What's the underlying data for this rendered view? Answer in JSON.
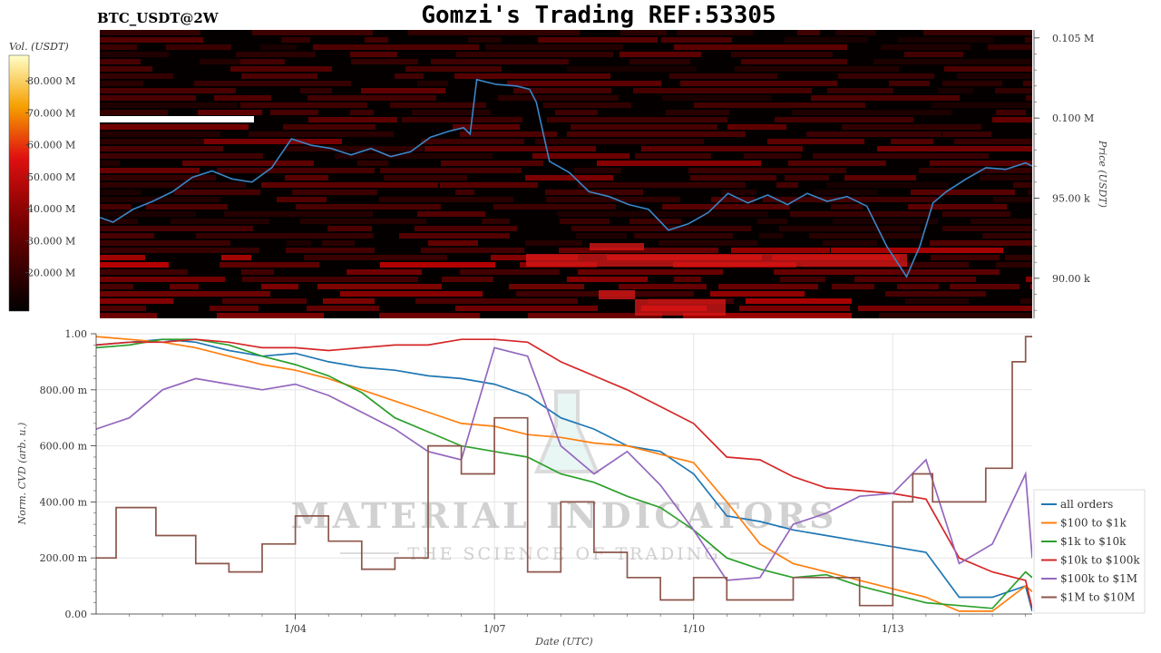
{
  "header": {
    "title": "Gomzi's Trading REF:53305",
    "pair": "BTC_USDT@2W"
  },
  "heatmap_panel": {
    "colorbar_label": "Vol. (USDT)",
    "colorbar_ticks": [
      "80.000 M",
      "70.000 M",
      "60.000 M",
      "50.000 M",
      "40.000 M",
      "30.000 M",
      "20.000 M"
    ],
    "colorbar_values": [
      80,
      70,
      60,
      50,
      40,
      30,
      20
    ],
    "colorbar_range": [
      8,
      88
    ],
    "price_ticks": [
      "0.105 M",
      "0.100 M",
      "95.00 k",
      "90.00 k"
    ],
    "price_values": [
      105000,
      100000,
      95000,
      90000
    ],
    "price_range": [
      87500,
      105500
    ],
    "ylabel": "Price (USDT)",
    "line_color": "#3a86c8"
  },
  "cvd_panel": {
    "ylabel": "Norm. CVD (arb. u.)",
    "xlabel": "Date (UTC)",
    "y_ticks": [
      "0.00",
      "200.00 m",
      "400.00 m",
      "600.00 m",
      "800.00 m",
      "1.00"
    ],
    "y_values": [
      0,
      0.2,
      0.4,
      0.6,
      0.8,
      1.0
    ],
    "x_ticks": [
      "1/04",
      "1/07",
      "1/10",
      "1/13"
    ],
    "x_tick_days": [
      3,
      6,
      9,
      12
    ],
    "watermark_main": "MATERIAL INDICATORS",
    "watermark_sub": "THE SCIENCE OF TRADING",
    "legend": [
      {
        "label": "all orders",
        "color": "#1f77b4"
      },
      {
        "label": "$100 to $1k",
        "color": "#ff7f0e"
      },
      {
        "label": "$1k to $10k",
        "color": "#2ca02c"
      },
      {
        "label": "$10k to $100k",
        "color": "#d62728"
      },
      {
        "label": "$100k to $1M",
        "color": "#9467bd"
      },
      {
        "label": "$1M to $10M",
        "color": "#8c564b"
      }
    ]
  },
  "chart_data": [
    {
      "type": "line",
      "title": "Gomzi's Trading REF:53305",
      "ylabel": "Price (USDT)",
      "ylim": [
        87500,
        105500
      ],
      "x_unit": "days from chart start",
      "x_range": [
        0,
        14.1
      ],
      "series": [
        {
          "x": [
            0,
            0.2,
            0.5,
            0.8,
            1.1,
            1.4,
            1.7,
            2.0,
            2.3,
            2.6,
            2.9,
            3.2,
            3.5,
            3.8,
            4.1,
            4.4,
            4.7,
            5.0,
            5.3,
            5.5,
            5.6,
            5.7,
            6.0,
            6.3,
            6.5,
            6.6,
            6.8,
            7.1,
            7.4,
            7.7,
            8.0,
            8.3,
            8.6,
            8.9,
            9.2,
            9.5,
            9.8,
            10.1,
            10.4,
            10.7,
            11.0,
            11.3,
            11.6,
            11.9,
            12.2,
            12.4,
            12.6,
            12.8,
            13.1,
            13.4,
            13.7,
            14.0,
            14.1
          ],
          "values": [
            93800,
            93500,
            94300,
            94800,
            95400,
            96300,
            96700,
            96200,
            96000,
            96900,
            98700,
            98300,
            98100,
            97700,
            98100,
            97600,
            97900,
            98800,
            99200,
            99400,
            99000,
            102400,
            102100,
            102000,
            101800,
            101000,
            97300,
            96600,
            95400,
            95100,
            94600,
            94300,
            93000,
            93400,
            94100,
            95300,
            94700,
            95200,
            94600,
            95300,
            94800,
            95100,
            94500,
            92000,
            90100,
            92000,
            94700,
            95400,
            96200,
            96900,
            96800,
            97200,
            97000
          ]
        }
      ]
    },
    {
      "type": "line",
      "ylabel": "Norm. CVD (arb. u.)",
      "xlabel": "Date (UTC)",
      "ylim": [
        0,
        1
      ],
      "x_unit": "days from chart start",
      "x_range": [
        0,
        14.1
      ],
      "series": [
        {
          "name": "all orders",
          "color": "#1f77b4",
          "x": [
            0,
            0.5,
            1,
            1.5,
            2,
            2.5,
            3,
            3.5,
            4,
            4.5,
            5,
            5.5,
            6,
            6.5,
            7,
            7.5,
            8,
            8.5,
            9,
            9.5,
            10,
            10.5,
            11,
            11.5,
            12,
            12.5,
            13,
            13.5,
            14,
            14.1
          ],
          "values": [
            0.96,
            0.97,
            0.98,
            0.97,
            0.94,
            0.92,
            0.93,
            0.9,
            0.88,
            0.87,
            0.85,
            0.84,
            0.82,
            0.78,
            0.7,
            0.66,
            0.6,
            0.58,
            0.5,
            0.35,
            0.33,
            0.3,
            0.28,
            0.26,
            0.24,
            0.22,
            0.06,
            0.06,
            0.1,
            0.01
          ]
        },
        {
          "name": "$100 to $1k",
          "color": "#ff7f0e",
          "x": [
            0,
            0.5,
            1,
            1.5,
            2,
            2.5,
            3,
            3.5,
            4,
            4.5,
            5,
            5.5,
            6,
            6.5,
            7,
            7.5,
            8,
            8.5,
            9,
            9.5,
            10,
            10.5,
            11,
            11.5,
            12,
            12.5,
            13,
            13.5,
            14,
            14.1
          ],
          "values": [
            0.99,
            0.98,
            0.97,
            0.95,
            0.92,
            0.89,
            0.87,
            0.84,
            0.8,
            0.76,
            0.72,
            0.68,
            0.67,
            0.64,
            0.63,
            0.61,
            0.6,
            0.57,
            0.54,
            0.4,
            0.25,
            0.18,
            0.15,
            0.12,
            0.09,
            0.06,
            0.01,
            0.01,
            0.1,
            0.08
          ]
        },
        {
          "name": "$1k to $10k",
          "color": "#2ca02c",
          "x": [
            0,
            0.5,
            1,
            1.5,
            2,
            2.5,
            3,
            3.5,
            4,
            4.5,
            5,
            5.5,
            6,
            6.5,
            7,
            7.5,
            8,
            8.5,
            9,
            9.5,
            10,
            10.5,
            11,
            11.5,
            12,
            12.5,
            13,
            13.5,
            14,
            14.1
          ],
          "values": [
            0.95,
            0.96,
            0.98,
            0.98,
            0.96,
            0.92,
            0.89,
            0.85,
            0.79,
            0.7,
            0.65,
            0.6,
            0.58,
            0.56,
            0.5,
            0.47,
            0.42,
            0.38,
            0.3,
            0.2,
            0.16,
            0.13,
            0.14,
            0.1,
            0.07,
            0.04,
            0.03,
            0.02,
            0.15,
            0.13
          ]
        },
        {
          "name": "$10k to $100k",
          "color": "#d62728",
          "x": [
            0,
            0.5,
            1,
            1.5,
            2,
            2.5,
            3,
            3.5,
            4,
            4.5,
            5,
            5.5,
            6,
            6.5,
            7,
            7.5,
            8,
            8.5,
            9,
            9.5,
            10,
            10.5,
            11,
            11.5,
            12,
            12.5,
            13,
            13.5,
            14,
            14.1
          ],
          "values": [
            0.96,
            0.97,
            0.97,
            0.98,
            0.97,
            0.95,
            0.95,
            0.94,
            0.95,
            0.96,
            0.96,
            0.98,
            0.98,
            0.97,
            0.9,
            0.85,
            0.8,
            0.74,
            0.68,
            0.56,
            0.55,
            0.49,
            0.45,
            0.44,
            0.43,
            0.41,
            0.2,
            0.15,
            0.12,
            0.02
          ]
        },
        {
          "name": "$100k to $1M",
          "color": "#9467bd",
          "x": [
            0,
            0.5,
            1,
            1.5,
            2,
            2.5,
            3,
            3.5,
            4,
            4.5,
            5,
            5.5,
            6,
            6.5,
            7,
            7.5,
            8,
            8.5,
            9,
            9.5,
            10,
            10.5,
            11,
            11.5,
            12,
            12.5,
            13,
            13.5,
            14,
            14.1
          ],
          "values": [
            0.66,
            0.7,
            0.8,
            0.84,
            0.82,
            0.8,
            0.82,
            0.78,
            0.72,
            0.66,
            0.58,
            0.55,
            0.95,
            0.92,
            0.6,
            0.5,
            0.58,
            0.46,
            0.3,
            0.12,
            0.13,
            0.32,
            0.36,
            0.42,
            0.43,
            0.55,
            0.18,
            0.25,
            0.5,
            0.2
          ]
        },
        {
          "name": "$1M to $10M",
          "color": "#8c564b",
          "x": [
            0,
            0.3,
            0.6,
            0.9,
            1.2,
            1.5,
            2,
            2.5,
            3,
            3.5,
            4,
            4.5,
            5,
            5.5,
            6,
            6.5,
            7,
            7.5,
            8,
            8.5,
            9,
            9.5,
            10,
            10.5,
            11,
            11.5,
            12,
            12.3,
            12.6,
            13,
            13.4,
            13.8,
            14,
            14.1
          ],
          "values": [
            0.2,
            0.38,
            0.38,
            0.28,
            0.28,
            0.18,
            0.15,
            0.25,
            0.35,
            0.26,
            0.16,
            0.2,
            0.6,
            0.5,
            0.7,
            0.15,
            0.4,
            0.22,
            0.13,
            0.05,
            0.13,
            0.05,
            0.05,
            0.13,
            0.13,
            0.03,
            0.4,
            0.5,
            0.4,
            0.4,
            0.52,
            0.9,
            0.99,
            0.99
          ]
        }
      ]
    }
  ]
}
